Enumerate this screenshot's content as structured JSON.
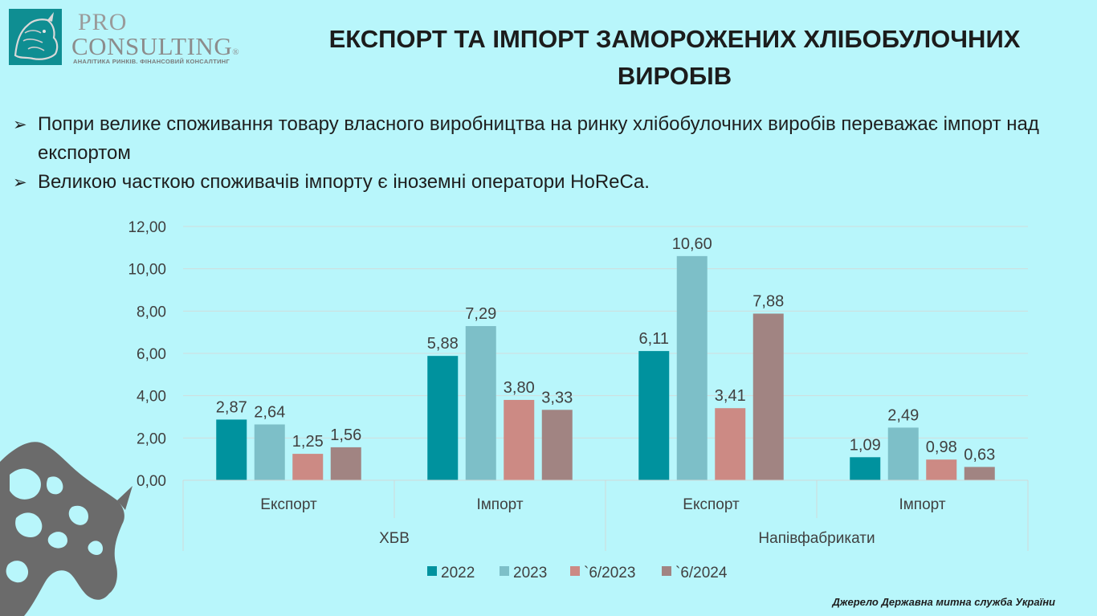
{
  "logo": {
    "line1": "PRO",
    "line2": "CONSULTING",
    "registered": "®",
    "tagline": "АНАЛІТИКА РИНКІВ. ФІНАНСОВИЙ КОНСАЛТИНГ"
  },
  "title": "ЕКСПОРТ ТА ІМПОРТ ЗАМОРОЖЕНИХ ХЛІБОБУЛОЧНИХ ВИРОБІВ",
  "bullets": [
    "Попри велике споживання товару власного виробництва на ринку хлібобулочних виробів переважає імпорт над експортом",
    "Великою часткою споживачів імпорту є іноземні оператори HoReCa."
  ],
  "source": "Джерело Державна митна служба України",
  "colors": {
    "background": "#b8f6fb",
    "series_2022": "#00929e",
    "series_2023": "#7dbfc8",
    "series_6_2023": "#cc8a84",
    "series_6_2024": "#a18482"
  },
  "chart_data": {
    "type": "bar",
    "title": "",
    "xlabel": "",
    "ylabel": "",
    "ylim": [
      0,
      12
    ],
    "yticks": [
      "0,00",
      "2,00",
      "4,00",
      "6,00",
      "8,00",
      "10,00",
      "12,00"
    ],
    "grid": true,
    "legend": "bottom",
    "groups": [
      "ХБВ",
      "Напівфабрикати"
    ],
    "categories": [
      "Експорт",
      "Імпорт",
      "Експорт",
      "Імпорт"
    ],
    "series": [
      {
        "name": "2022",
        "color": "#00929e",
        "values": [
          2.87,
          5.88,
          6.11,
          1.09
        ],
        "labels": [
          "2,87",
          "5,88",
          "6,11",
          "1,09"
        ]
      },
      {
        "name": "2023",
        "color": "#7dbfc8",
        "values": [
          2.64,
          7.29,
          10.6,
          2.49
        ],
        "labels": [
          "2,64",
          "7,29",
          "10,60",
          "2,49"
        ]
      },
      {
        "name": "`6/2023",
        "color": "#cc8a84",
        "values": [
          1.25,
          3.8,
          3.41,
          0.98
        ],
        "labels": [
          "1,25",
          "3,80",
          "3,41",
          "0,98"
        ]
      },
      {
        "name": "`6/2024",
        "color": "#a18482",
        "values": [
          1.56,
          3.33,
          7.88,
          0.63
        ],
        "labels": [
          "1,56",
          "3,33",
          "7,88",
          "0,63"
        ]
      }
    ]
  }
}
